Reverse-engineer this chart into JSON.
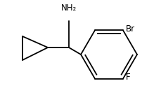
{
  "bg_color": "#ffffff",
  "bond_color": "#000000",
  "text_color": "#000000",
  "label_nh2": "NH₂",
  "label_br": "Br",
  "label_f": "F",
  "figsize": [
    2.29,
    1.36
  ],
  "dpi": 100
}
